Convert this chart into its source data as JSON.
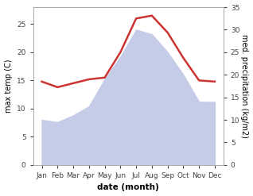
{
  "months": [
    "Jan",
    "Feb",
    "Mar",
    "Apr",
    "May",
    "Jun",
    "Jul",
    "Aug",
    "Sep",
    "Oct",
    "Nov",
    "Dec"
  ],
  "temp": [
    14.8,
    13.8,
    14.5,
    15.2,
    15.5,
    20.0,
    26.0,
    26.5,
    23.5,
    19.0,
    15.0,
    14.8
  ],
  "precip_right": [
    10.0,
    9.5,
    11.0,
    13.0,
    19.0,
    24.0,
    30.0,
    29.0,
    25.0,
    20.0,
    14.0,
    14.0
  ],
  "temp_color": "#cc3333",
  "precip_fill_color": "#c5cce8",
  "left_ylabel": "max temp (C)",
  "right_ylabel": "med. precipitation (kg/m2)",
  "xlabel": "date (month)",
  "ylim_left": [
    0,
    28
  ],
  "ylim_right": [
    0,
    35
  ],
  "left_yticks": [
    0,
    5,
    10,
    15,
    20,
    25
  ],
  "right_yticks": [
    0,
    5,
    10,
    15,
    20,
    25,
    30,
    35
  ],
  "bg_color": "#ffffff"
}
